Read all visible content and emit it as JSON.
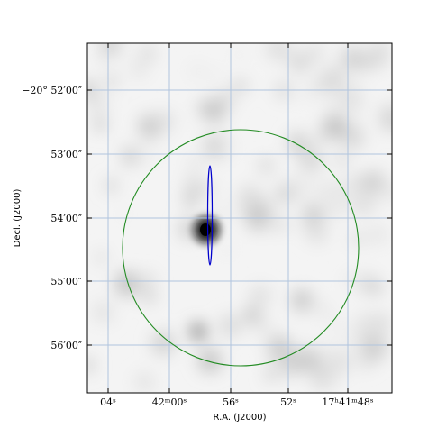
{
  "chart_data": {
    "type": "sky-map",
    "xlabel": "R.A. (J2000)",
    "ylabel": "Decl. (J2000)",
    "x_ticks": [
      {
        "label": "04ˢ"
      },
      {
        "label": "42ᵐ00ˢ"
      },
      {
        "label": "56ˢ"
      },
      {
        "label": "52ˢ"
      },
      {
        "label": "17ʰ41ᵐ48ˢ"
      }
    ],
    "y_ticks": [
      {
        "label": "−20° 52′00″"
      },
      {
        "label": "53′00″"
      },
      {
        "label": "54′00″"
      },
      {
        "label": "55′00″"
      },
      {
        "label": "56′00″"
      }
    ],
    "grid": true,
    "grid_color": "#b0c4de",
    "overlays": [
      {
        "shape": "circle",
        "color": "#228b22"
      },
      {
        "shape": "ellipse",
        "color": "#0000cd"
      }
    ],
    "colormap": "gray-inverted"
  }
}
